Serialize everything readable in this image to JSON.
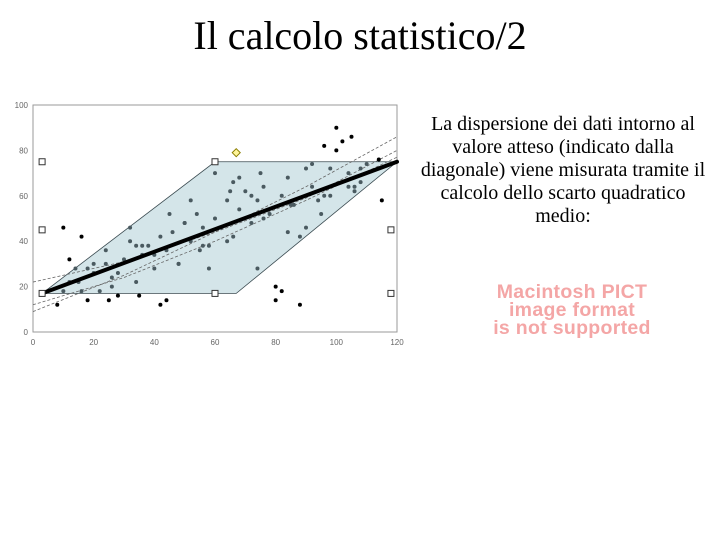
{
  "slide": {
    "title": "Il calcolo statistico/2",
    "body_text": "La dispersione dei dati intorno al valore atteso (indicato dalla diagonale) viene misurata tramite il calcolo dello scarto quadratico medio:",
    "placeholder_lines": [
      "Macintosh PICT",
      "image format",
      "is not supported"
    ]
  },
  "chart_data": {
    "type": "scatter",
    "xlim": [
      0,
      120
    ],
    "ylim": [
      0,
      100
    ],
    "x_ticks": [
      0,
      20,
      40,
      60,
      80,
      100,
      120
    ],
    "y_ticks": [
      0,
      20,
      40,
      60,
      80,
      100
    ],
    "grid": false,
    "regression_line": {
      "x": [
        3,
        120
      ],
      "y": [
        17,
        75
      ]
    },
    "confidence_curves": [
      {
        "x": [
          0,
          30,
          60,
          90,
          120
        ],
        "y": [
          12,
          24,
          40,
          58,
          77
        ]
      },
      {
        "x": [
          0,
          30,
          60,
          90,
          120
        ],
        "y": [
          22,
          31,
          44,
          59,
          80
        ]
      },
      {
        "x": [
          0,
          30,
          60,
          90,
          120
        ],
        "y": [
          9,
          25,
          44,
          64,
          86
        ]
      }
    ],
    "band_polygon": {
      "x": [
        3,
        60,
        120,
        67,
        3
      ],
      "y": [
        17,
        75,
        75,
        17,
        17
      ]
    },
    "band_markers": [
      {
        "x": 3,
        "y": 75
      },
      {
        "x": 3,
        "y": 45
      },
      {
        "x": 3,
        "y": 17
      },
      {
        "x": 60,
        "y": 75
      },
      {
        "x": 60,
        "y": 17
      },
      {
        "x": 118,
        "y": 45
      },
      {
        "x": 118,
        "y": 17
      }
    ],
    "highlight_point": {
      "x": 67,
      "y": 79
    },
    "points": {
      "x": [
        8,
        10,
        12,
        14,
        16,
        18,
        20,
        22,
        24,
        26,
        28,
        30,
        32,
        34,
        36,
        38,
        40,
        42,
        44,
        46,
        48,
        50,
        52,
        54,
        56,
        58,
        60,
        62,
        64,
        66,
        68,
        70,
        72,
        74,
        76,
        78,
        80,
        82,
        84,
        86,
        88,
        90,
        92,
        94,
        96,
        98,
        100,
        102,
        104,
        106,
        108,
        110,
        12,
        16,
        20,
        24,
        28,
        32,
        36,
        40,
        44,
        48,
        52,
        56,
        60,
        64,
        68,
        72,
        76,
        80,
        84,
        88,
        92,
        96,
        100,
        104,
        108,
        10,
        18,
        26,
        34,
        42,
        50,
        58,
        66,
        74,
        82,
        90,
        98,
        106,
        114,
        15,
        25,
        35,
        45,
        55,
        65,
        75,
        85,
        95,
        105,
        115
      ],
      "y": [
        12,
        46,
        22,
        28,
        18,
        14,
        26,
        18,
        36,
        24,
        16,
        32,
        40,
        22,
        34,
        38,
        28,
        42,
        36,
        44,
        30,
        48,
        40,
        52,
        46,
        38,
        50,
        46,
        58,
        42,
        54,
        62,
        48,
        58,
        64,
        52,
        20,
        60,
        68,
        56,
        12,
        72,
        64,
        58,
        82,
        60,
        90,
        84,
        70,
        62,
        66,
        74,
        32,
        42,
        30,
        30,
        26,
        46,
        38,
        34,
        14,
        30,
        58,
        38,
        70,
        40,
        68,
        60,
        50,
        14,
        44,
        42,
        74,
        60,
        80,
        64,
        72,
        18,
        28,
        20,
        38,
        12,
        48,
        28,
        66,
        28,
        18,
        46,
        72,
        64,
        76,
        22,
        14,
        16,
        52,
        36,
        62,
        70,
        56,
        52,
        86,
        58
      ]
    }
  }
}
